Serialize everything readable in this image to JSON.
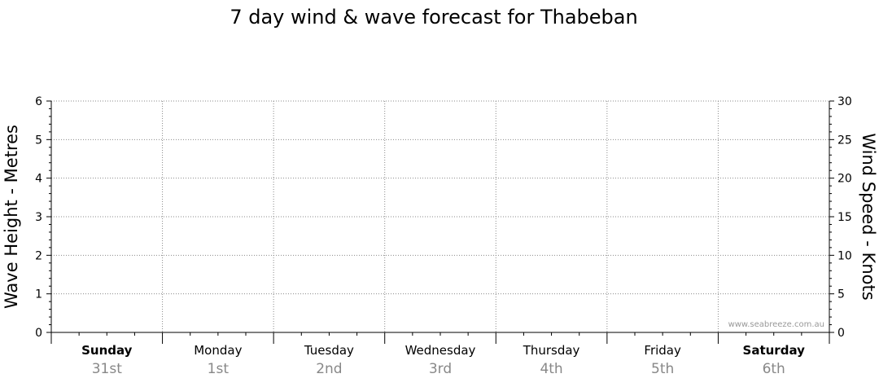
{
  "chart_data": {
    "type": "line",
    "title": "7 day wind & wave forecast for Thabeban",
    "ylabel_left": "Wave Height - Metres",
    "ylabel_right": "Wind Speed - Knots",
    "ylim_left": [
      0,
      6
    ],
    "ylim_right": [
      0,
      30
    ],
    "yticks_left": [
      "0",
      "1",
      "2",
      "3",
      "4",
      "5",
      "6"
    ],
    "yticks_right": [
      "0",
      "5",
      "10",
      "15",
      "20",
      "25",
      "30"
    ],
    "days": [
      {
        "name": "Sunday",
        "date": "31st",
        "bold": true
      },
      {
        "name": "Monday",
        "date": "1st",
        "bold": false
      },
      {
        "name": "Tuesday",
        "date": "2nd",
        "bold": false
      },
      {
        "name": "Wednesday",
        "date": "3rd",
        "bold": false
      },
      {
        "name": "Thursday",
        "date": "4th",
        "bold": false
      },
      {
        "name": "Friday",
        "date": "5th",
        "bold": false
      },
      {
        "name": "Saturday",
        "date": "6th",
        "bold": true
      }
    ],
    "series": [],
    "grid": true,
    "credit": "www.seabreeze.com.au"
  }
}
